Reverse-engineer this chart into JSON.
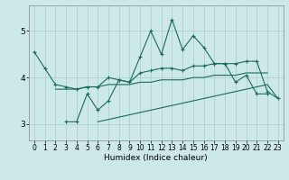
{
  "xlabel": "Humidex (Indice chaleur)",
  "x": [
    0,
    1,
    2,
    3,
    4,
    5,
    6,
    7,
    8,
    9,
    10,
    11,
    12,
    13,
    14,
    15,
    16,
    17,
    18,
    19,
    20,
    21,
    22,
    23
  ],
  "line_jagged": [
    null,
    null,
    null,
    3.05,
    3.05,
    3.65,
    3.3,
    3.5,
    3.95,
    3.9,
    4.45,
    5.0,
    4.5,
    5.25,
    4.6,
    4.9,
    4.65,
    4.3,
    4.3,
    3.9,
    4.05,
    3.65,
    3.65,
    null
  ],
  "line_upper": [
    4.55,
    4.2,
    3.85,
    3.8,
    3.75,
    3.8,
    3.8,
    4.0,
    3.95,
    3.9,
    4.1,
    4.15,
    4.2,
    4.2,
    4.15,
    4.25,
    4.25,
    4.3,
    4.3,
    4.3,
    4.35,
    4.35,
    3.7,
    3.55
  ],
  "line_lower": [
    null,
    null,
    null,
    null,
    null,
    null,
    3.05,
    3.1,
    3.15,
    3.2,
    3.25,
    3.3,
    3.35,
    3.4,
    3.45,
    3.5,
    3.55,
    3.6,
    3.65,
    3.7,
    3.75,
    3.8,
    3.85,
    3.55
  ],
  "line_mid": [
    null,
    null,
    3.75,
    3.75,
    3.75,
    3.8,
    3.8,
    3.85,
    3.85,
    3.85,
    3.9,
    3.9,
    3.95,
    3.95,
    3.95,
    4.0,
    4.0,
    4.05,
    4.05,
    4.05,
    4.1,
    4.1,
    4.1,
    null
  ],
  "bg_color": "#cce8e8",
  "line_color": "#1a6b5a",
  "grid_color": "#aacccc",
  "xlim": [
    -0.5,
    23.5
  ],
  "ylim": [
    2.65,
    5.55
  ],
  "yticks": [
    3,
    4,
    5
  ],
  "xticks": [
    0,
    1,
    2,
    3,
    4,
    5,
    6,
    7,
    8,
    9,
    10,
    11,
    12,
    13,
    14,
    15,
    16,
    17,
    18,
    19,
    20,
    21,
    22,
    23
  ]
}
